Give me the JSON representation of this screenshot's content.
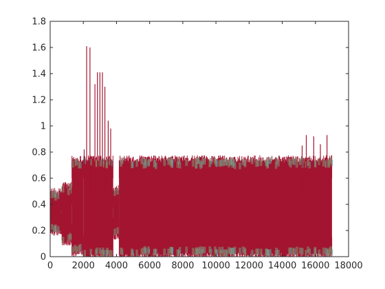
{
  "chart_data": {
    "type": "line",
    "title": "",
    "xlabel": "",
    "ylabel": "",
    "xlim": [
      0,
      18000
    ],
    "ylim": [
      0,
      1.8
    ],
    "x_ticks": [
      0,
      2000,
      4000,
      6000,
      8000,
      10000,
      12000,
      14000,
      16000,
      18000
    ],
    "y_ticks": [
      0,
      0.2,
      0.4,
      0.6,
      0.8,
      1,
      1.2,
      1.4,
      1.6,
      1.8
    ],
    "x_tick_labels": [
      "0",
      "2000",
      "4000",
      "6000",
      "8000",
      "10000",
      "12000",
      "14000",
      "16000",
      "18000"
    ],
    "y_tick_labels": [
      "0",
      "0.2",
      "0.4",
      "0.6",
      "0.8",
      "1",
      "1.2",
      "1.4",
      "1.6",
      "1.8"
    ],
    "grid": false,
    "box": true,
    "n_samples": 17000,
    "series_colors": [
      "#0072BD",
      "#D95319",
      "#EDB120",
      "#7E2F8E",
      "#77AC30",
      "#4DBEEE",
      "#A2142F"
    ],
    "segments": [
      {
        "x": [
          0,
          700
        ],
        "low": 0.21,
        "high": 0.47
      },
      {
        "x": [
          700,
          1300
        ],
        "low": 0.13,
        "high": 0.52
      },
      {
        "x": [
          1300,
          2000
        ],
        "low": 0.05,
        "high": 0.72
      },
      {
        "x": [
          2000,
          3800
        ],
        "low": 0.02,
        "high": 0.72
      },
      {
        "x": [
          3800,
          4150
        ],
        "low": 0.18,
        "high": 0.5
      },
      {
        "x": [
          4150,
          17000
        ],
        "low": 0.03,
        "high": 0.72
      }
    ],
    "peaks": [
      {
        "x": 2200,
        "y": 1.61
      },
      {
        "x": 2400,
        "y": 1.6
      },
      {
        "x": 2850,
        "y": 1.41
      },
      {
        "x": 3000,
        "y": 1.41
      },
      {
        "x": 3150,
        "y": 1.41
      },
      {
        "x": 2700,
        "y": 1.32
      },
      {
        "x": 3300,
        "y": 1.3
      },
      {
        "x": 3500,
        "y": 1.04
      },
      {
        "x": 3650,
        "y": 0.98
      },
      {
        "x": 2050,
        "y": 0.82
      },
      {
        "x": 1450,
        "y": 0.73
      },
      {
        "x": 15450,
        "y": 0.93
      },
      {
        "x": 15900,
        "y": 0.92
      },
      {
        "x": 16700,
        "y": 0.93
      },
      {
        "x": 15200,
        "y": 0.85
      },
      {
        "x": 16300,
        "y": 0.86
      }
    ]
  }
}
